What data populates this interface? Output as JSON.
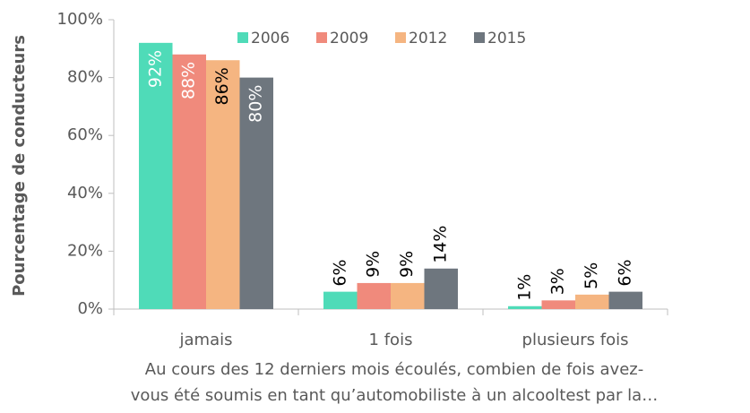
{
  "chart_data": {
    "type": "bar",
    "ylabel": "Pourcentage de conducteurs",
    "xlabel": [
      "Au cours des 12 derniers mois écoulés, combien de fois avez-",
      "vous été soumis en tant qu’automobiliste à un alcooltest par la…"
    ],
    "categories": [
      "jamais",
      "1 fois",
      "plusieurs fois"
    ],
    "series": [
      {
        "name": "2006",
        "color": "#4fdbb8",
        "values": [
          92,
          6,
          1
        ],
        "value_labels": [
          "92%",
          "6%",
          "1%"
        ]
      },
      {
        "name": "2009",
        "color": "#f08a7c",
        "values": [
          88,
          9,
          3
        ],
        "value_labels": [
          "88%",
          "9%",
          "3%"
        ]
      },
      {
        "name": "2012",
        "color": "#f5b581",
        "values": [
          86,
          9,
          5
        ],
        "value_labels": [
          "86%",
          "9%",
          "5%"
        ]
      },
      {
        "name": "2015",
        "color": "#6e767e",
        "values": [
          80,
          14,
          6
        ],
        "value_labels": [
          "80%",
          "14%",
          "6%"
        ]
      }
    ],
    "ylim": [
      0,
      100
    ],
    "yticks": [
      {
        "value": 0,
        "label": "0%"
      },
      {
        "value": 20,
        "label": "20%"
      },
      {
        "value": 40,
        "label": "40%"
      },
      {
        "value": 60,
        "label": "60%"
      },
      {
        "value": 80,
        "label": "80%"
      },
      {
        "value": 100,
        "label": "100%"
      }
    ],
    "legend": "top",
    "grid": false
  }
}
